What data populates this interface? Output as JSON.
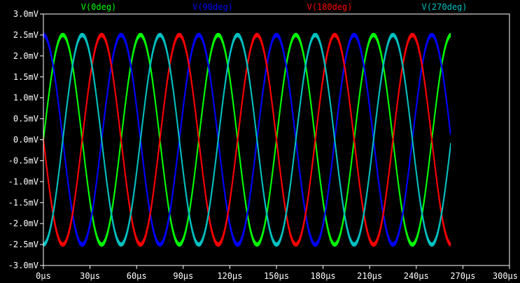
{
  "chart_data": {
    "type": "line",
    "xlabel": "",
    "ylabel": "",
    "xlim": [
      0,
      300
    ],
    "ylim": [
      -3.0,
      3.0
    ],
    "x_unit": "µs",
    "y_unit": "mV",
    "grid": false,
    "legend_position": "top",
    "background": "#000000",
    "axis_color": "#ffffff",
    "x_ticks": [
      0,
      30,
      60,
      90,
      120,
      150,
      180,
      210,
      240,
      270,
      300
    ],
    "x_tick_labels": [
      "0µs",
      "30µs",
      "60µs",
      "90µs",
      "120µs",
      "150µs",
      "180µs",
      "210µs",
      "240µs",
      "270µs",
      "300µs"
    ],
    "y_ticks": [
      3.0,
      2.5,
      2.0,
      1.5,
      1.0,
      0.5,
      0.0,
      -0.5,
      -1.0,
      -1.5,
      -2.0,
      -2.5,
      -3.0
    ],
    "y_tick_labels": [
      "3.0mV",
      "2.5mV",
      "2.0mV",
      "1.5mV",
      "1.0mV",
      "0.5mV",
      "0.0mV",
      "-0.5mV",
      "-1.0mV",
      "-1.5mV",
      "-2.0mV",
      "-2.5mV",
      "-3.0mV"
    ],
    "series": [
      {
        "name": "V(0deg)",
        "color": "#00ff00",
        "amplitude": 2.5,
        "period": 50,
        "phase_deg": 0,
        "ripple": 0.08,
        "x_start": 0,
        "x_end": 262
      },
      {
        "name": "V(90deg)",
        "color": "#0000ff",
        "amplitude": 2.5,
        "period": 50,
        "phase_deg": 90,
        "ripple": 0.08,
        "x_start": 0,
        "x_end": 262
      },
      {
        "name": "V(180deg)",
        "color": "#ff0000",
        "amplitude": 2.5,
        "period": 50,
        "phase_deg": 180,
        "ripple": 0.08,
        "x_start": 0,
        "x_end": 262
      },
      {
        "name": "V(270deg)",
        "color": "#00c0c0",
        "amplitude": 2.5,
        "period": 50,
        "phase_deg": 270,
        "ripple": 0.08,
        "x_start": 0,
        "x_end": 262
      }
    ]
  }
}
